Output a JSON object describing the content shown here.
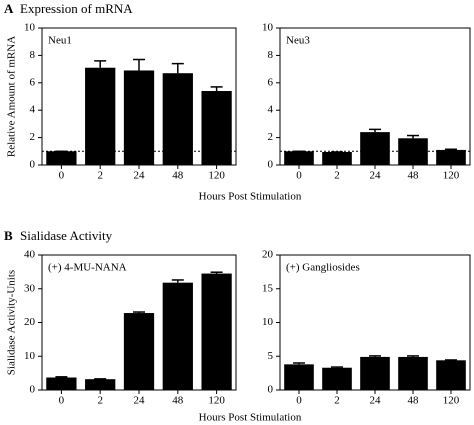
{
  "sections": [
    {
      "label": "A",
      "title": "Expression of mRNA",
      "xlabel": "Hours Post Stimulation"
    },
    {
      "label": "B",
      "title": "Sialidase Activity",
      "xlabel": "Hours Post Stimulation"
    }
  ],
  "chart_data": [
    {
      "type": "bar",
      "annotation": "Neu1",
      "ylabel": "Relative Amount of mRNA",
      "categories": [
        "0",
        "2",
        "24",
        "48",
        "120"
      ],
      "values": [
        1.0,
        7.1,
        6.9,
        6.7,
        5.4
      ],
      "errors": [
        0,
        0.5,
        0.8,
        0.7,
        0.3
      ],
      "color": "#000000",
      "ylim": [
        0,
        10
      ],
      "yticks": [
        0,
        2,
        4,
        6,
        8,
        10
      ],
      "reference_line": 1
    },
    {
      "type": "bar",
      "annotation": "Neu3",
      "categories": [
        "0",
        "2",
        "24",
        "48",
        "120"
      ],
      "values": [
        1.0,
        0.95,
        2.4,
        1.95,
        1.1
      ],
      "errors": [
        0,
        0,
        0.2,
        0.2,
        0.05
      ],
      "color": "#000000",
      "ylim": [
        0,
        10
      ],
      "yticks": [
        0,
        2,
        4,
        6,
        8,
        10
      ],
      "reference_line": 1
    },
    {
      "type": "bar",
      "annotation": "(+) 4-MU-NANA",
      "ylabel": "Sialidase Activity-Units",
      "categories": [
        "0",
        "2",
        "24",
        "48",
        "120"
      ],
      "values": [
        3.7,
        3.2,
        22.8,
        31.8,
        34.5
      ],
      "errors": [
        0.2,
        0.1,
        0.3,
        0.8,
        0.4
      ],
      "color": "#000000",
      "ylim": [
        0,
        40
      ],
      "yticks": [
        0,
        10,
        20,
        30,
        40
      ]
    },
    {
      "type": "bar",
      "annotation": "(+) Gangliosides",
      "categories": [
        "0",
        "2",
        "24",
        "48",
        "120"
      ],
      "values": [
        3.8,
        3.3,
        4.9,
        4.9,
        4.4
      ],
      "errors": [
        0.2,
        0.1,
        0.15,
        0.15,
        0.05
      ],
      "color": "#000000",
      "ylim": [
        0,
        20
      ],
      "yticks": [
        0,
        5,
        10,
        15,
        20
      ]
    }
  ]
}
